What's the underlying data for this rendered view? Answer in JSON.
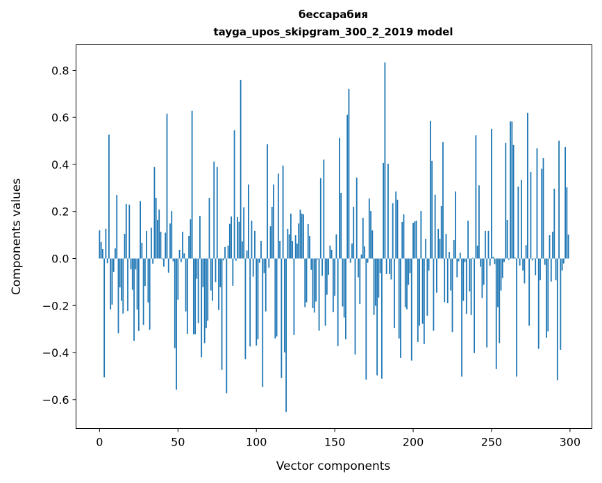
{
  "chart_data": {
    "type": "bar",
    "title": [
      "бессарабия",
      "tayga_upos_skipgram_300_2_2019 model"
    ],
    "xlabel": "Vector components",
    "ylabel": "Components values",
    "xlim": [
      -15,
      314
    ],
    "ylim": [
      -0.723,
      0.909
    ],
    "xticks": [
      0,
      50,
      100,
      150,
      200,
      250,
      300
    ],
    "yticks": [
      -0.6,
      -0.4,
      -0.2,
      0.0,
      0.2,
      0.4,
      0.6,
      0.8
    ],
    "ytick_labels": [
      "−0.6",
      "−0.4",
      "−0.2",
      "0.0",
      "0.2",
      "0.4",
      "0.6",
      "0.8"
    ],
    "xtick_labels": [
      "0",
      "50",
      "100",
      "150",
      "200",
      "250",
      "300"
    ],
    "grid": false,
    "bar_color": "#1f77b4",
    "values": [
      0.12,
      0.07,
      0.04,
      -0.505,
      0.126,
      -0.02,
      0.527,
      -0.217,
      -0.196,
      -0.057,
      0.043,
      0.27,
      -0.318,
      -0.123,
      -0.18,
      -0.234,
      0.105,
      0.232,
      -0.223,
      0.229,
      -0.046,
      -0.133,
      -0.35,
      -0.046,
      -0.217,
      -0.308,
      0.244,
      0.067,
      -0.282,
      -0.117,
      0.117,
      -0.187,
      -0.303,
      0.131,
      -0.022,
      0.389,
      0.258,
      0.164,
      0.208,
      0.114,
      -0.003,
      -0.035,
      0.11,
      0.616,
      -0.06,
      0.149,
      0.202,
      -0.012,
      -0.381,
      -0.558,
      -0.175,
      0.037,
      -0.015,
      0.114,
      0.022,
      -0.225,
      -0.32,
      0.096,
      0.167,
      0.628,
      -0.322,
      -0.322,
      -0.086,
      -0.275,
      0.181,
      -0.42,
      -0.122,
      -0.36,
      -0.296,
      -0.264,
      0.258,
      -0.136,
      -0.18,
      0.412,
      -0.1,
      0.389,
      -0.219,
      -0.122,
      -0.473,
      -0.008,
      0.049,
      -0.573,
      0.055,
      0.147,
      0.179,
      -0.116,
      0.546,
      -0.009,
      0.176,
      0.156,
      0.76,
      0.073,
      0.218,
      -0.428,
      0.034,
      0.315,
      -0.374,
      0.161,
      -0.077,
      0.117,
      -0.37,
      -0.343,
      -0.018,
      0.075,
      -0.547,
      -0.062,
      -0.225,
      0.486,
      -0.039,
      0.137,
      0.22,
      0.315,
      -0.34,
      -0.331,
      0.361,
      0.075,
      -0.508,
      0.395,
      -0.399,
      -0.653,
      0.126,
      0.103,
      0.191,
      0.075,
      -0.325,
      0.099,
      0.064,
      0.149,
      0.208,
      0.191,
      0.188,
      -0.207,
      -0.186,
      0.146,
      0.096,
      -0.048,
      -0.211,
      -0.23,
      -0.183,
      -0.004,
      -0.307,
      0.342,
      -0.074,
      0.421,
      -0.286,
      -0.154,
      -0.069,
      0.055,
      0.037,
      -0.228,
      -0.159,
      0.103,
      -0.372,
      0.513,
      0.279,
      -0.204,
      -0.251,
      -0.343,
      0.611,
      0.722,
      -0.018,
      0.064,
      0.22,
      -0.408,
      0.344,
      -0.08,
      -0.193,
      0.017,
      0.173,
      0.052,
      -0.515,
      -0.018,
      0.255,
      0.202,
      0.12,
      -0.24,
      -0.201,
      -0.497,
      -0.166,
      -0.062,
      -0.511,
      0.406,
      0.834,
      -0.066,
      0.403,
      -0.066,
      -0.089,
      0.235,
      -0.296,
      0.285,
      0.25,
      -0.34,
      -0.423,
      0.155,
      0.188,
      -0.207,
      -0.216,
      -0.112,
      -0.062,
      -0.434,
      0.152,
      0.158,
      0.161,
      -0.355,
      -0.286,
      0.202,
      -0.278,
      -0.364,
      0.084,
      -0.243,
      -0.051,
      0.586,
      0.415,
      -0.307,
      0.271,
      -0.145,
      0.126,
      0.084,
      0.223,
      0.495,
      -0.186,
      0.105,
      -0.19,
      0.028,
      -0.136,
      -0.313,
      0.078,
      0.285,
      -0.08,
      -0.012,
      0.025,
      -0.502,
      -0.18,
      -0.015,
      -0.236,
      0.161,
      -0.14,
      -0.24,
      0.003,
      -0.402,
      0.524,
      0.055,
      0.311,
      -0.035,
      -0.168,
      -0.112,
      0.117,
      -0.378,
      0.117,
      -0.03,
      0.551,
      0.007,
      -0.024,
      -0.47,
      -0.207,
      -0.36,
      -0.136,
      -0.083,
      -0.015,
      0.492,
      0.164,
      -0.006,
      0.583,
      0.583,
      0.483,
      0.004,
      -0.502,
      0.306,
      -0.03,
      0.335,
      -0.051,
      -0.106,
      0.057,
      0.619,
      -0.286,
      0.368,
      -0.008,
      -0.001,
      -0.071,
      0.469,
      -0.384,
      -0.092,
      0.382,
      0.427,
      -0.027,
      -0.337,
      -0.31,
      0.099,
      -0.098,
      0.114,
      0.297,
      -0.092,
      -0.518,
      0.501,
      -0.388,
      -0.051,
      -0.021,
      0.474,
      0.303,
      0.102
    ]
  }
}
